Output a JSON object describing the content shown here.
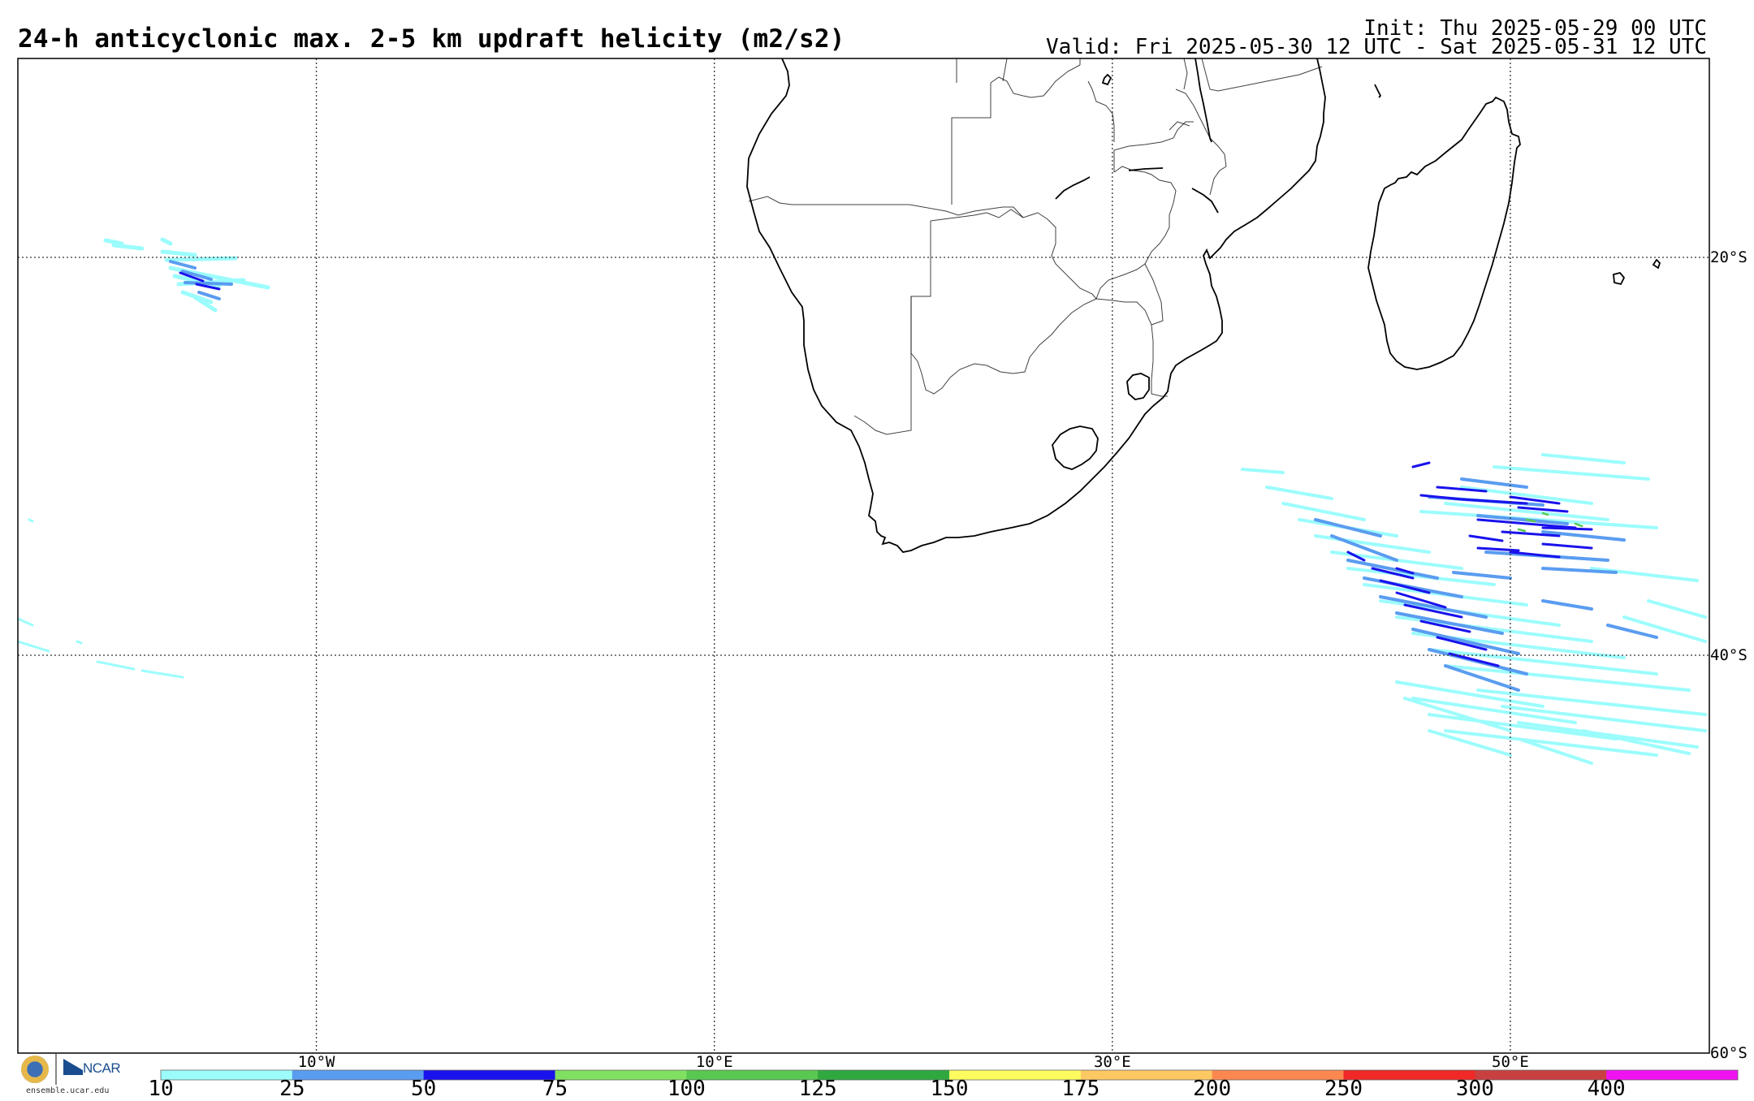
{
  "header": {
    "title": "24-h anticyclonic max. 2-5 km updraft helicity (m2/s2)",
    "init": "Init: Thu 2025-05-29 00 UTC",
    "valid": "Valid: Fri 2025-05-30 12 UTC - Sat 2025-05-31 12 UTC"
  },
  "map": {
    "lon_range": [
      -25,
      60
    ],
    "lat_range": [
      -60,
      -10
    ],
    "lat_lines": [
      {
        "value": -20,
        "label": "20°S"
      },
      {
        "value": -40,
        "label": "40°S"
      },
      {
        "value": -60,
        "label": "60°S"
      }
    ],
    "lon_lines": [
      {
        "value": -10,
        "label": "10°W"
      },
      {
        "value": 10,
        "label": "10°E"
      },
      {
        "value": 30,
        "label": "30°E"
      },
      {
        "value": 50,
        "label": "50°E"
      }
    ],
    "features": [
      "southern-africa-coastline",
      "country-borders",
      "madagascar",
      "lake-malawi",
      "lesotho",
      "eswatini"
    ],
    "helicity_areas": [
      {
        "name": "south-atlantic-patch",
        "lon": [
          -17,
          -11
        ],
        "lat": [
          -22.5,
          -19
        ],
        "max_level": 75
      },
      {
        "name": "western-edge-streaks",
        "lon": [
          -25,
          -18
        ],
        "lat": [
          -41,
          -37
        ],
        "max_level": 25
      },
      {
        "name": "south-west-indian-ocean-band",
        "lon": [
          36,
          59
        ],
        "lat": [
          -47,
          -31
        ],
        "max_level": 125
      }
    ]
  },
  "colorbar": {
    "levels": [
      "10",
      "25",
      "50",
      "75",
      "100",
      "125",
      "150",
      "175",
      "200",
      "250",
      "300",
      "400"
    ],
    "colors": [
      "#9cfcfc",
      "#5a9cf0",
      "#1a12ec",
      "#80e060",
      "#58c850",
      "#30a840",
      "#fcfc60",
      "#fcc864",
      "#fc8850",
      "#f02828",
      "#c84040",
      "#f012f0"
    ]
  },
  "logos": {
    "ncar_text": "NCAR",
    "url": "ensemble.ucar.edu"
  }
}
